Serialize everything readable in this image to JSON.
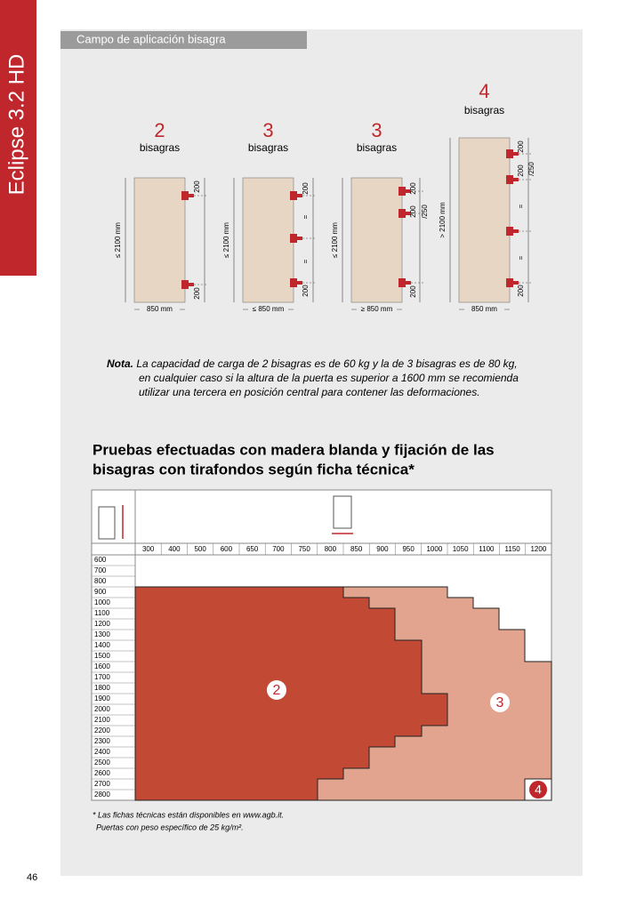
{
  "sidebar": "Eclipse 3.2 HD",
  "section_title": "Campo de aplicación bisagra",
  "doors": [
    {
      "count": "2",
      "unit": "bisagras",
      "height": "≤ 2100 mm",
      "width": "850 mm",
      "marks": [
        "200",
        "200"
      ]
    },
    {
      "count": "3",
      "unit": "bisagras",
      "height": "≤ 2100 mm",
      "width": "≤ 850 mm",
      "marks": [
        "200",
        "=",
        "=",
        "200"
      ]
    },
    {
      "count": "3",
      "unit": "bisagras",
      "height": "≤ 2100 mm",
      "width": "≥ 850 mm",
      "marks": [
        "200",
        "200",
        "/250",
        "200"
      ]
    },
    {
      "count": "4",
      "unit": "bisagras",
      "height": "> 2100 mm",
      "width": "850 mm",
      "marks": [
        "200",
        "200",
        "/250",
        "=",
        "=",
        "200"
      ]
    }
  ],
  "note": {
    "label": "Nota.",
    "lines": [
      "La capacidad de carga de 2 bisagras es de 60 kg y la de 3 bisagras es de 80 kg,",
      "en cualquier caso si la altura de la puerta es superior a 1600 mm se recomienda",
      "utilizar una tercera en posición central para contener las deformaciones."
    ]
  },
  "heading": [
    "Pruebas efectuadas con madera blanda y fijación de las",
    "bisagras con tirafondos según ficha técnica*"
  ],
  "table": {
    "columns": [
      300,
      400,
      500,
      600,
      650,
      700,
      750,
      800,
      850,
      900,
      950,
      1000,
      1050,
      1100,
      1150,
      1200
    ],
    "rows": [
      600,
      700,
      800,
      900,
      1000,
      1100,
      1200,
      1300,
      1400,
      1500,
      1600,
      1700,
      1800,
      1900,
      2000,
      2100,
      2200,
      2300,
      2400,
      2500,
      2600,
      2700,
      2800
    ],
    "regions": [
      "2",
      "3",
      "4"
    ]
  },
  "footnote": [
    "* Las fichas técnicas están disponibles en www.agb.it.",
    "Puertas con peso específico de 25 kg/m²."
  ],
  "page_number": "46"
}
